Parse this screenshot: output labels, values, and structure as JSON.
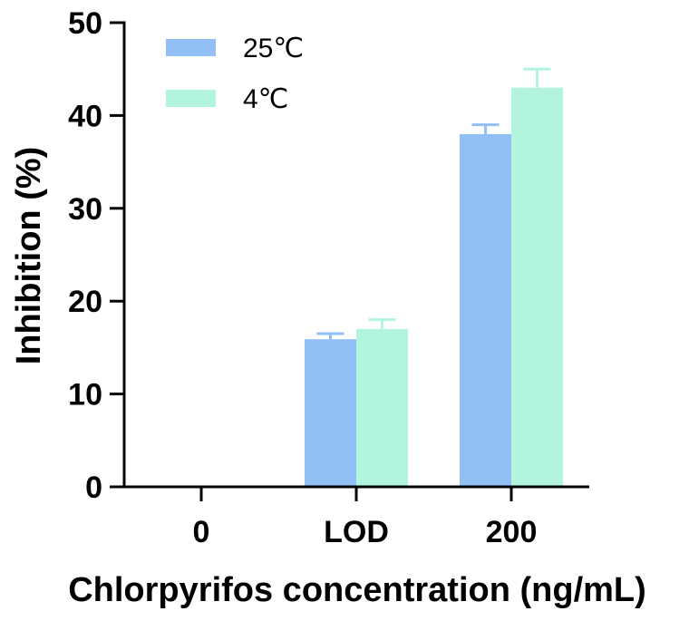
{
  "chart_data": {
    "type": "bar",
    "title": "",
    "xlabel": "Chlorpyrifos concentration (ng/mL)",
    "ylabel": "Inhibition (%)",
    "categories": [
      "0",
      "LOD",
      "200"
    ],
    "ylim": [
      0,
      50
    ],
    "yticks": [
      0,
      10,
      20,
      30,
      40,
      50
    ],
    "ytick_labels": [
      "0",
      "10",
      "20",
      "30",
      "40",
      "50"
    ],
    "grid": false,
    "legend_position": "top-left",
    "series": [
      {
        "name": "25℃",
        "color": "#92bff5",
        "values": [
          0,
          15.9,
          38
        ],
        "errors": [
          0,
          0.6,
          1.0
        ]
      },
      {
        "name": "4℃",
        "color": "#b3f4df",
        "values": [
          0,
          17,
          43
        ],
        "errors": [
          0,
          1.0,
          2.0
        ]
      }
    ]
  }
}
